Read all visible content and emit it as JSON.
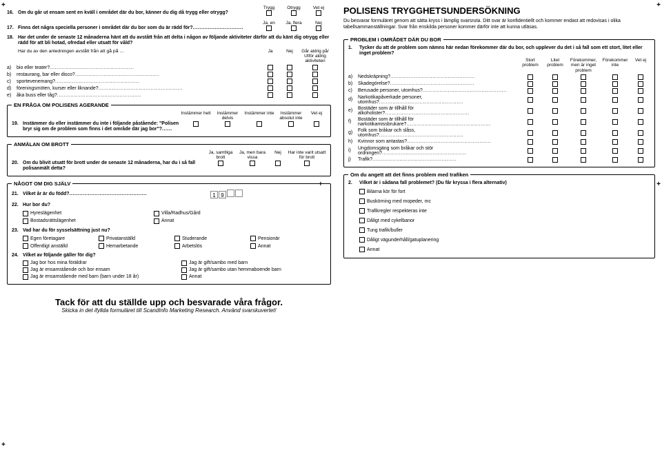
{
  "cropmark": "+",
  "left": {
    "q16": {
      "num": "16.",
      "text": "Om du går ut ensam sent en kväll i området där du bor, känner du dig då trygg eller otrygg?",
      "opts": [
        "Trygg",
        "Otrygg",
        "Vet ej"
      ]
    },
    "q17": {
      "num": "17.",
      "text": "Finns det några speciella personer i området där du bor som du är rädd för?",
      "opts": [
        "Ja, en",
        "Ja, flera",
        "Nej"
      ]
    },
    "q18": {
      "num": "18.",
      "text": "Har det under de senaste 12 månaderna hänt att du avstått från att delta i någon av följande aktiviteter därför att du känt dig otrygg eller rädd för att bli hotad, ofredad eller utsatt för våld?",
      "sub": "Har du av den anledningen avstått från att gå på …",
      "cols": [
        "Ja",
        "Nej",
        "Går aldrig på/ Utför aldrig aktiviteten"
      ],
      "rows": [
        {
          "l": "a)",
          "t": "bio eller teater?"
        },
        {
          "l": "b)",
          "t": "restaurang, bar eller disco?"
        },
        {
          "l": "c)",
          "t": "sportevenemang?"
        },
        {
          "l": "d)",
          "t": "föreningsmöten, kurser eller liknande?"
        },
        {
          "l": "e)",
          "t": "åka buss eller tåg?"
        }
      ]
    },
    "fs19": {
      "legend": "EN FRÅGA OM POLISENS AGERANDE",
      "num": "19.",
      "text": "Instämmer du eller instämmer du inte i följande påstående: \"Polisen bryr sig om de problem som finns i det område där jag bor\"?",
      "cols": [
        "Instämmer helt",
        "Instämmer delvis",
        "Instämmer inte",
        "Instämmer absolut inte",
        "Vet ej"
      ]
    },
    "fs20": {
      "legend": "ANMÄLAN OM BROTT",
      "num": "20.",
      "text": "Om du blivit utsatt för brott under de senaste 12 månaderna, har du i så fall polisanmält detta?",
      "cols": [
        "Ja, samtliga brott",
        "Ja, men bara vissa",
        "Nej",
        "Har inte varit utsatt för brott"
      ]
    },
    "fsSelf": {
      "legend": "NÅGOT OM DIG SJÄLV",
      "q21": {
        "num": "21.",
        "text": "Vilket år är du född?",
        "year": [
          "1",
          "9",
          "",
          ""
        ]
      },
      "q22": {
        "num": "22.",
        "text": "Hur bor du?",
        "opts": [
          [
            "Hyreslägenhet",
            "Villa/Radhus/Gård"
          ],
          [
            "Bostadsrättslägenhet",
            "Annat"
          ]
        ]
      },
      "q23": {
        "num": "23.",
        "text": "Vad har du för sysselsättning just nu?",
        "rows": [
          [
            "Egen företagare",
            "Privatanställd",
            "Studerande",
            "Pensionär"
          ],
          [
            "Offentligt anställd",
            "Hemarbetande",
            "Arbetslös",
            "Annat"
          ]
        ]
      },
      "q24": {
        "num": "24.",
        "text": "Vilket av följande gäller för dig?",
        "rows": [
          [
            "Jag bor hos mina föräldrar",
            "Jag är gift/sambo med barn"
          ],
          [
            "Jag är ensamstående och bor ensam",
            "Jag är gift/sambo utan hemmaboende barn"
          ],
          [
            "Jag är ensamstående med barn (barn under 18 år)",
            "Annat"
          ]
        ]
      }
    }
  },
  "right": {
    "title": "POLISENS TRYGGHETSUNDERSÖKNING",
    "intro": "Du besvarar formuläret genom att sätta kryss i lämplig svarsruta. Ditt svar är konfidentiellt och kommer endast att redovisas i olika tabellsammanställningar. Svar från enskilda personer kommer därför inte att kunna utläsas.",
    "fs1": {
      "legend": "PROBLEM I OMRÅDET DÄR DU BOR",
      "num": "1.",
      "text": "Tycker du att de problem som nämns här nedan förekommer där du bor, och upplever du det i så fall som ett stort, litet eller inget problem?",
      "cols": [
        "Stort problem",
        "Litet problem",
        "Förekommer, men är inget problem",
        "Förekommer inte",
        "Vet ej"
      ],
      "rows": [
        {
          "l": "a)",
          "t": "Nedskräpning?"
        },
        {
          "l": "b)",
          "t": "Skadegörelse?"
        },
        {
          "l": "c)",
          "t": "Berusade personer, utomhus?"
        },
        {
          "l": "d)",
          "t": "Narkotikapåverkade personer, utomhus?"
        },
        {
          "l": "e)",
          "t": "Bostäder som är tillhåll för alkoholister?"
        },
        {
          "l": "f)",
          "t": "Bostäder som är tillhåll för narkotikamissbrukare?"
        },
        {
          "l": "g)",
          "t": "Folk som bråkar och slåss, utomhus?"
        },
        {
          "l": "h)",
          "t": "Kvinnor som antastas?"
        },
        {
          "l": "i)",
          "t": "Ungdomsgäng som bråkar och stör ordningen?"
        },
        {
          "l": "j)",
          "t": "Trafik?"
        }
      ]
    },
    "fs2": {
      "legend": "Om du angett att det finns problem med trafiken",
      "num": "2.",
      "text": "Vilket är i sådana fall problemet? (Du får kryssa i flera alternativ)",
      "opts": [
        "Bilarna kör för fort",
        "Buskörning med mopeder, mc",
        "Trafikregler respekteras inte",
        "Dåligt med cykelbanor",
        "Tung trafik/buller",
        "Dåligt vägunderhåll/gatuplanering",
        "Annat"
      ]
    }
  },
  "thanks": "Tack för att du ställde upp och besvarade våra frågor.",
  "thanks_sub": "Skicka in det ifyllda formuläret till ScandInfo Marketing Research. Använd svarskuvertet!"
}
